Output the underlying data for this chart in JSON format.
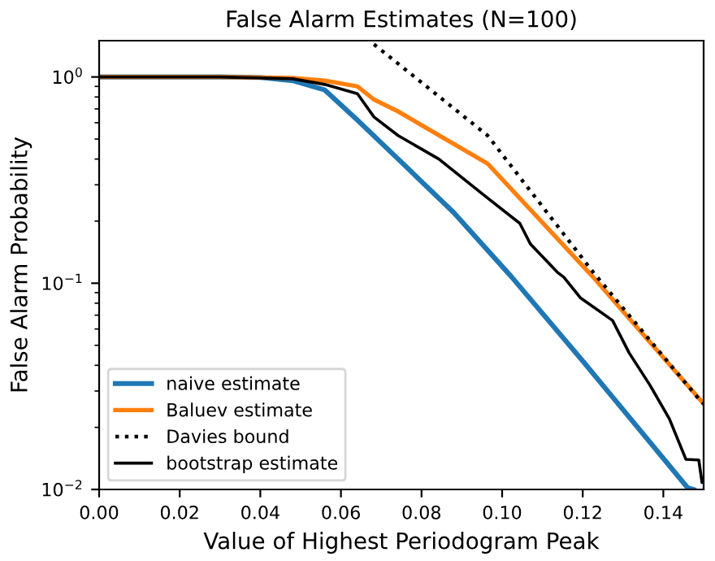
{
  "chart_data": {
    "type": "line",
    "title": "False Alarm Estimates (N=100)",
    "xlabel": "Value of Highest Periodogram Peak",
    "ylabel": "False Alarm Probability",
    "log": "y",
    "xlim": [
      0,
      0.15
    ],
    "xticks": [
      {
        "value": 0,
        "label": "0.00"
      },
      0.02,
      0.04,
      0.06,
      0.08,
      {
        "value": 0.1,
        "label": "0.10"
      },
      0.12,
      0.14
    ],
    "ylim": [
      0.01,
      1.5
    ],
    "yticks": [
      {
        "value": 1,
        "label": "10$^{0}$"
      },
      {
        "value": 0.1,
        "label": "10$^{−1}$"
      },
      {
        "value": 0.01,
        "label": "10$^{−2}$"
      }
    ],
    "grid": false,
    "legend": "bottom left",
    "marker": "none",
    "series": [
      {
        "name": "naive estimate",
        "color": "#1f77b4",
        "line_style": "solid",
        "x": [
          0,
          0.03,
          0.04,
          0.048,
          0.056,
          0.064,
          0.0742,
          0.088,
          0.1024,
          0.12,
          0.146,
          0.1475
        ],
        "values": [
          1,
          1,
          0.995,
          0.96,
          0.865,
          0.62,
          0.4,
          0.22,
          0.107,
          0.042,
          0.0102,
          0.01
        ]
      },
      {
        "name": "Baluev estimate",
        "color": "#ff7f0e",
        "line_style": "solid",
        "x": [
          0,
          0.03,
          0.048,
          0.056,
          0.0641,
          0.0681,
          0.0742,
          0.0964,
          0.1226,
          0.1496,
          0.15
        ],
        "values": [
          1,
          1,
          0.99,
          0.96,
          0.9,
          0.78,
          0.68,
          0.38,
          0.107,
          0.0266,
          0.026
        ]
      },
      {
        "name": "Davies bound",
        "color": "#000000",
        "line_style": "dotted",
        "x": [
          0.0682,
          0.0964,
          0.1226,
          0.1488,
          0.15
        ],
        "values": [
          1.44,
          0.52,
          0.113,
          0.0275,
          0.026
        ]
      },
      {
        "name": "bootstrap estimate",
        "color": "#000000",
        "line_style": "solid",
        "x": [
          0,
          0.03,
          0.048,
          0.056,
          0.0641,
          0.0682,
          0.0742,
          0.0843,
          0.0952,
          0.1044,
          0.107,
          0.1137,
          0.1153,
          0.1194,
          0.1274,
          0.1315,
          0.1367,
          0.1415,
          0.1456,
          0.1488,
          0.1496,
          0.15
        ],
        "values": [
          1,
          1,
          0.98,
          0.92,
          0.83,
          0.64,
          0.52,
          0.4,
          0.27,
          0.195,
          0.155,
          0.113,
          0.107,
          0.085,
          0.066,
          0.046,
          0.032,
          0.022,
          0.014,
          0.0139,
          0.0108,
          0.0108
        ]
      }
    ]
  }
}
